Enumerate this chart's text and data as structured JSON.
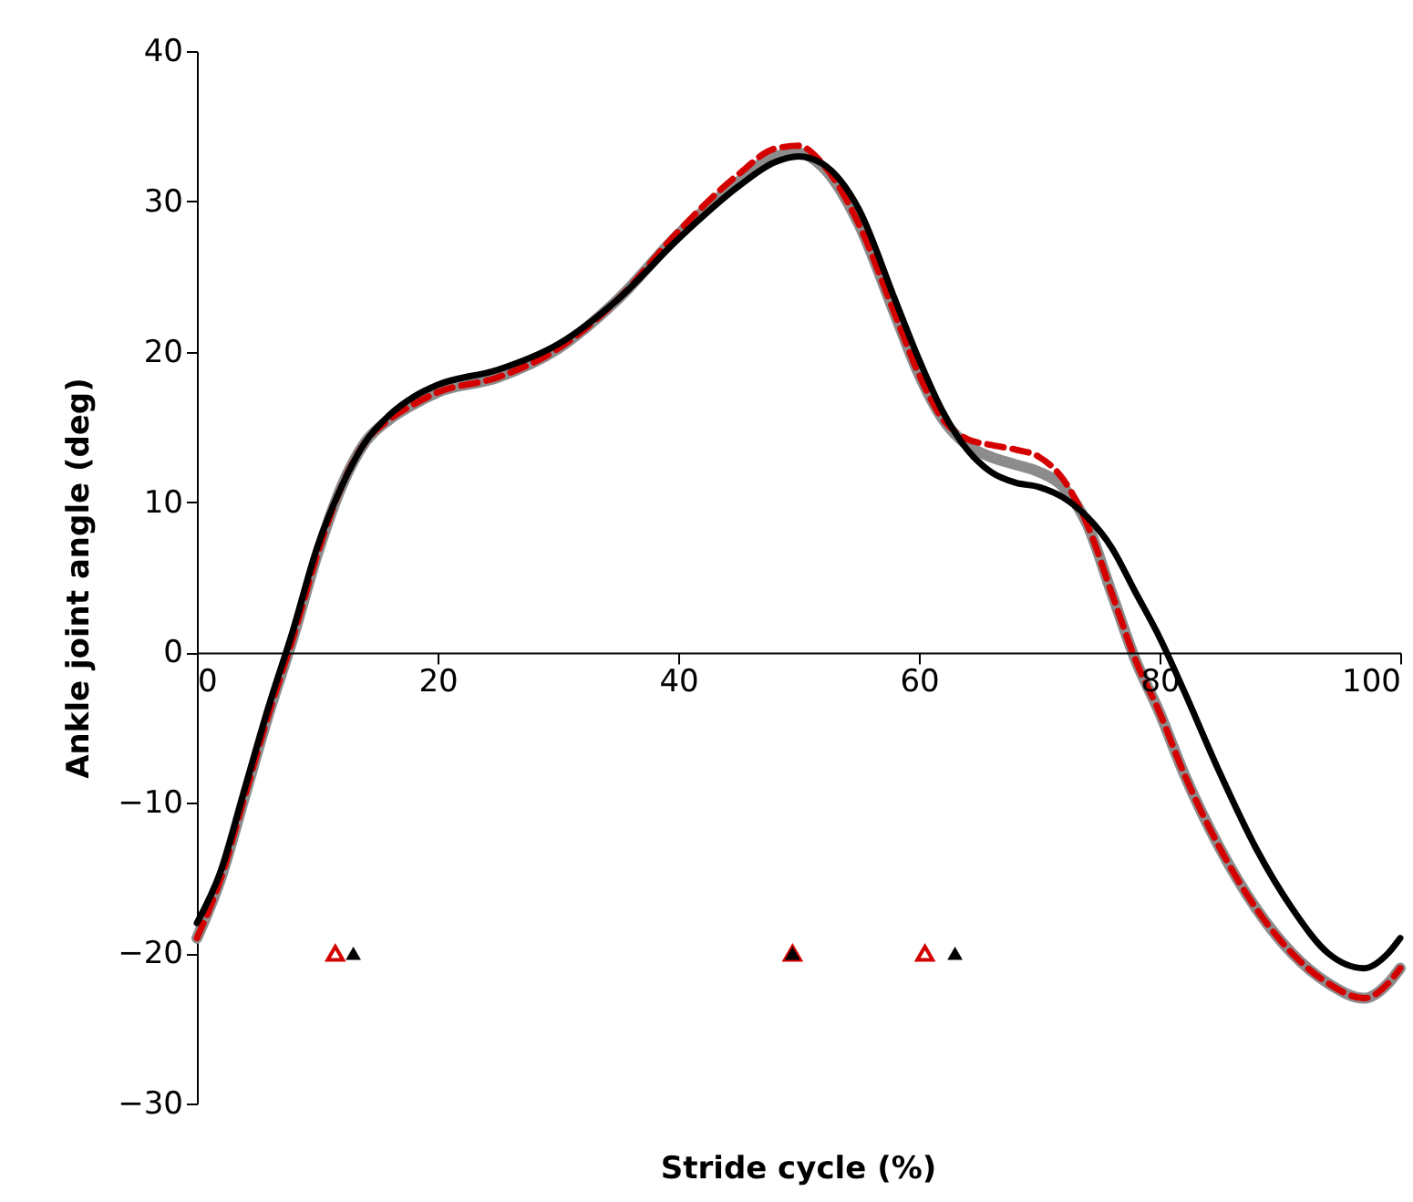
{
  "chart_data": {
    "type": "line",
    "xlabel": "Stride cycle (%)",
    "ylabel": "Ankle joint angle (deg)",
    "x": [
      0,
      2,
      4,
      6,
      8,
      10,
      12,
      14,
      16,
      18,
      20,
      25,
      30,
      35,
      40,
      45,
      48,
      50,
      52,
      55,
      58,
      60,
      62,
      64,
      66,
      68,
      70,
      72,
      74,
      76,
      78,
      80,
      82,
      85,
      88,
      91,
      94,
      97,
      99,
      100
    ],
    "xlim": [
      0,
      100
    ],
    "xticks": [
      0,
      20,
      40,
      60,
      80,
      100
    ],
    "ylim": [
      -30,
      40
    ],
    "yticks": [
      -30,
      -20,
      -10,
      0,
      10,
      20,
      30,
      40
    ],
    "series": [
      {
        "color": "#8c8c8c",
        "line_style": "solid",
        "values": [
          -19,
          -15,
          -9.5,
          -4,
          1,
          6.5,
          11,
          14,
          15.5,
          16.5,
          17.3,
          18.3,
          20.2,
          23.5,
          27.8,
          31.3,
          33,
          33.2,
          32.3,
          28.5,
          22.5,
          18.5,
          15.5,
          13.8,
          13,
          12.5,
          12,
          11,
          8.5,
          4,
          -0.5,
          -4,
          -8,
          -13,
          -17,
          -20,
          -22,
          -23,
          -22,
          -21
        ]
      },
      {
        "color": "#d40000",
        "line_style": "dashed",
        "values": [
          -19,
          -15,
          -9.5,
          -4,
          1,
          6.5,
          11,
          14,
          15.5,
          16.5,
          17.3,
          18.3,
          20.2,
          23.5,
          28,
          31.8,
          33.5,
          33.7,
          32.5,
          28.5,
          22.5,
          18.5,
          15.5,
          14.2,
          13.8,
          13.5,
          13,
          11.5,
          8.5,
          4,
          -0.5,
          -4,
          -8,
          -13,
          -17,
          -20,
          -22,
          -23,
          -22,
          -21
        ]
      },
      {
        "color": "#000000",
        "line_style": "solid",
        "values": [
          -18,
          -14.5,
          -9,
          -3.5,
          1.5,
          7,
          11,
          14,
          15.8,
          17,
          17.8,
          18.8,
          20.5,
          23.5,
          27.5,
          31,
          32.6,
          33,
          32.5,
          29.5,
          23.5,
          19.5,
          16,
          13.5,
          12,
          11.3,
          11,
          10.3,
          9,
          7,
          4,
          1,
          -2.5,
          -8,
          -13,
          -17,
          -20,
          -21,
          -20,
          -19
        ]
      },
      {
        "type": "scatter",
        "marker": "triangle",
        "color": "#d40000",
        "x": [
          11.5,
          49.5,
          60.5
        ],
        "values": [
          -20,
          -20,
          -20
        ]
      },
      {
        "type": "scatter",
        "marker": "triangle",
        "color": "#000000",
        "x": [
          13,
          49.5,
          63
        ],
        "values": [
          -20,
          -20,
          -20
        ]
      }
    ]
  }
}
